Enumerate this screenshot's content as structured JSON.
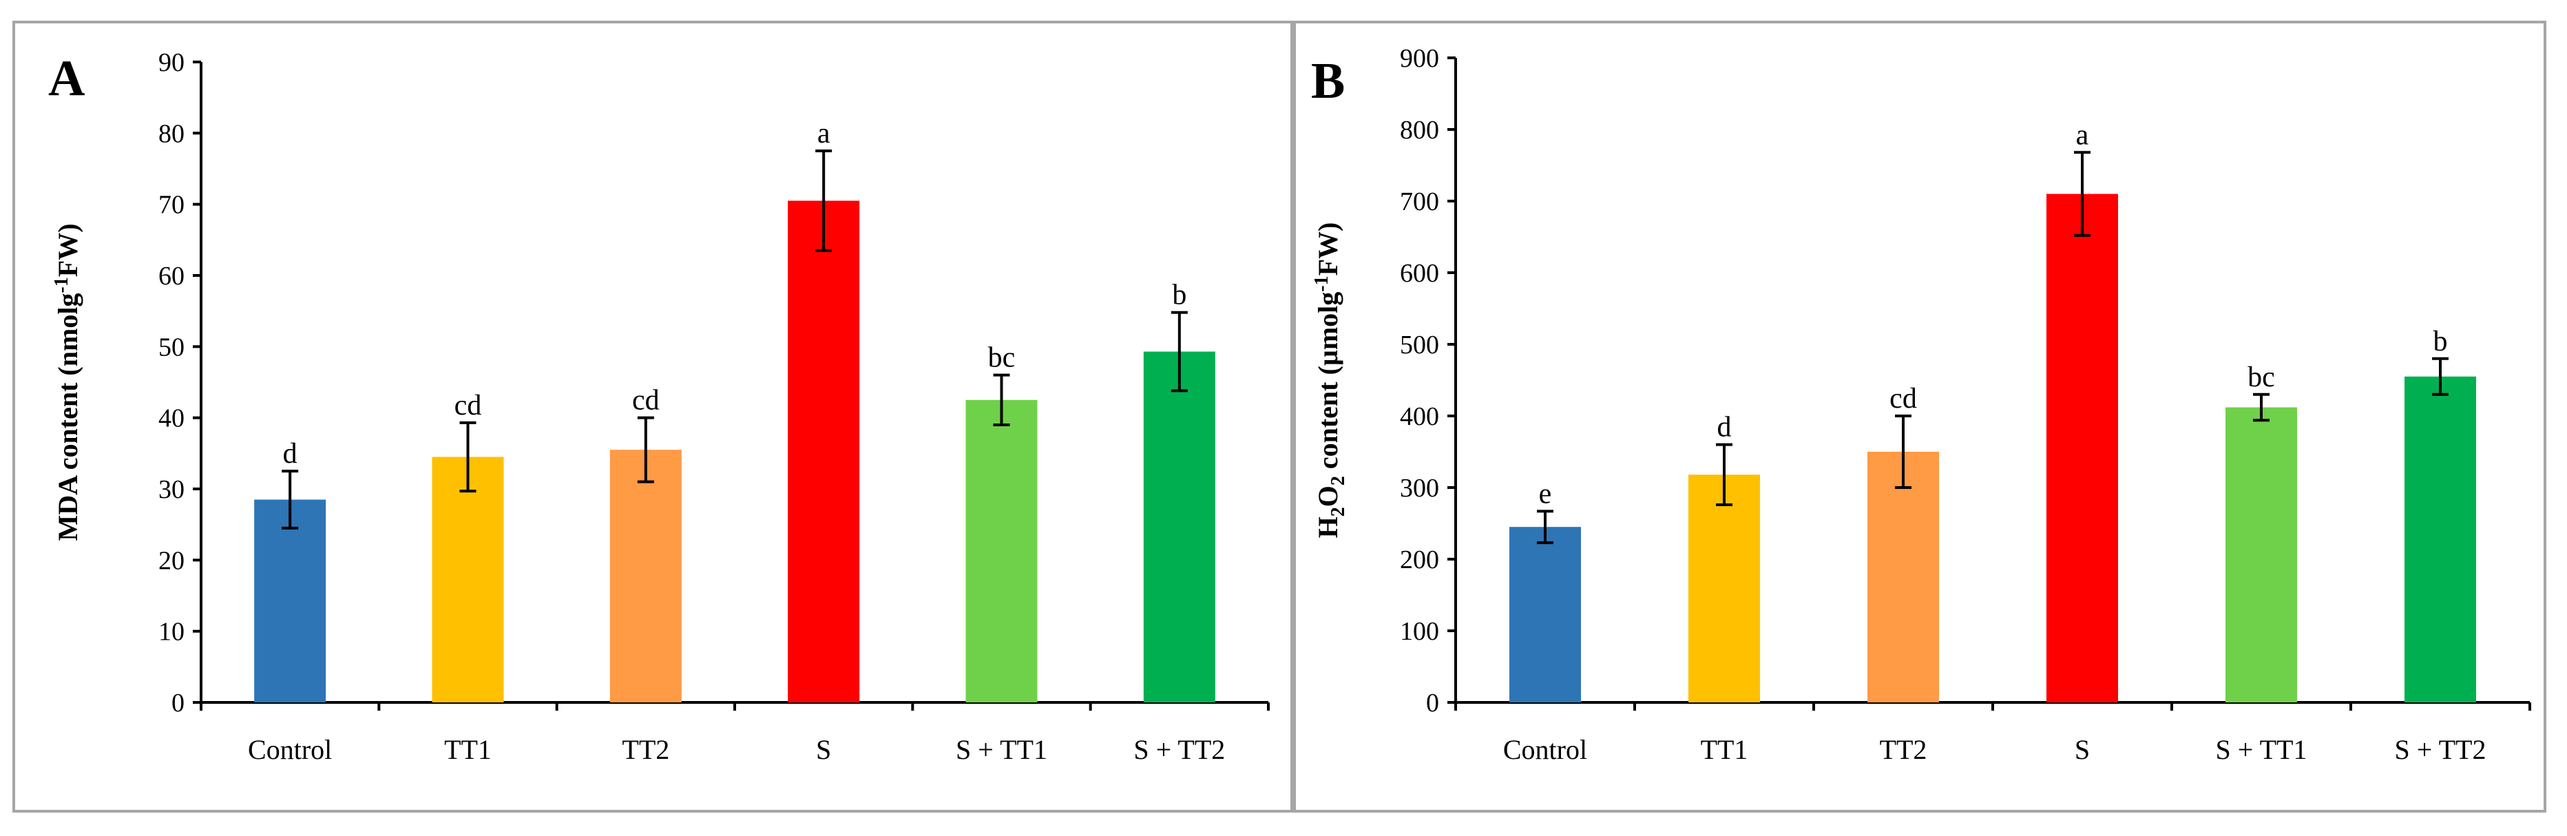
{
  "chart_data": [
    {
      "type": "bar",
      "panel_label": "A",
      "ylabel_main": "MDA content (nmolg",
      "ylabel_sup": "-1",
      "ylabel_end": "FW)",
      "categories": [
        "Control",
        "TT1",
        "TT2",
        "S",
        "S + TT1",
        "S + TT2"
      ],
      "values": [
        28.5,
        34.5,
        35.5,
        70.5,
        42.5,
        49.3
      ],
      "errors": [
        4,
        4.8,
        4.5,
        7,
        3.5,
        5.5
      ],
      "significance": [
        "d",
        "cd",
        "cd",
        "a",
        "bc",
        "b"
      ],
      "colors": [
        "#2e75b6",
        "#ffc000",
        "#ff9a45",
        "#ff0000",
        "#6fd14a",
        "#00b050"
      ],
      "ylim": [
        0,
        90
      ],
      "yticks": [
        0,
        10,
        20,
        30,
        40,
        50,
        60,
        70,
        80,
        90
      ],
      "grid": false
    },
    {
      "type": "bar",
      "panel_label": "B",
      "ylabel_main": "H",
      "ylabel_sub": "2",
      "ylabel_mid": "O",
      "ylabel_sub2": "2",
      "ylabel_rest": " content (µmolg",
      "ylabel_sup": "-1",
      "ylabel_end": "FW)",
      "categories": [
        "Control",
        "TT1",
        "TT2",
        "S",
        "S + TT1",
        "S + TT2"
      ],
      "values": [
        245,
        318,
        350,
        710,
        412,
        455
      ],
      "errors": [
        22,
        42,
        50,
        58,
        18,
        25
      ],
      "significance": [
        "e",
        "d",
        "cd",
        "a",
        "bc",
        "b"
      ],
      "colors": [
        "#2e75b6",
        "#ffc000",
        "#ff9a45",
        "#ff0000",
        "#6fd14a",
        "#00b050"
      ],
      "ylim": [
        0,
        900
      ],
      "yticks": [
        0,
        100,
        200,
        300,
        400,
        500,
        600,
        700,
        800,
        900
      ],
      "grid": false
    }
  ]
}
